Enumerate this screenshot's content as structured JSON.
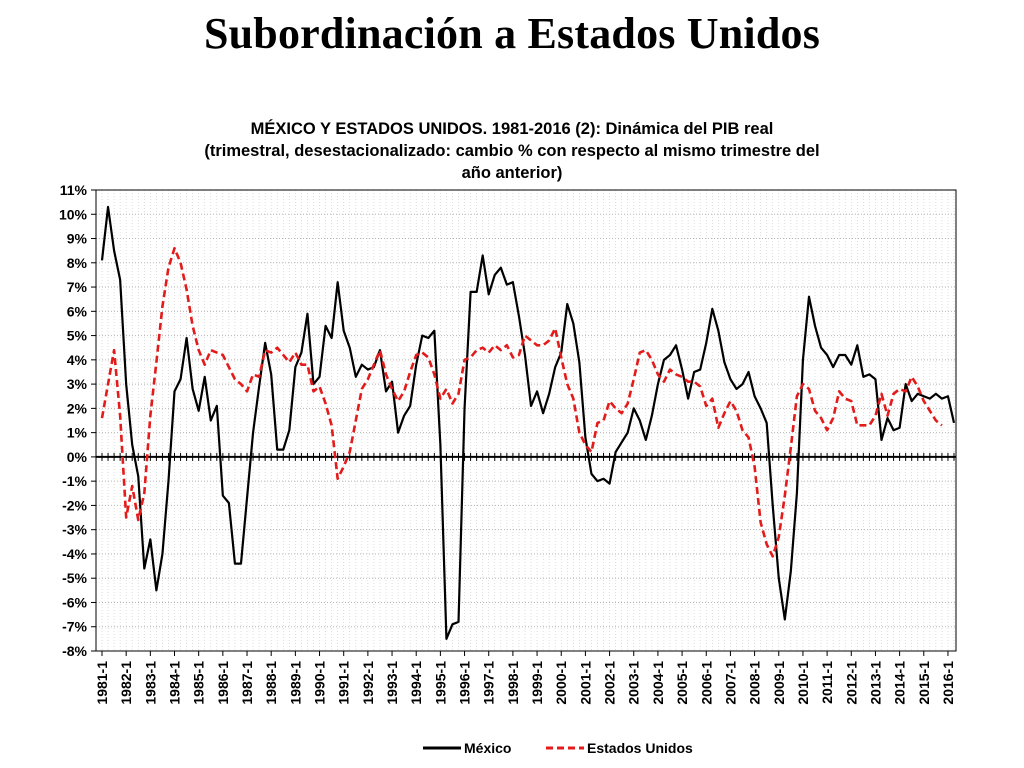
{
  "slide": {
    "title": "Subordinación a Estados Unidos"
  },
  "chart_data": {
    "type": "line",
    "title_lines": [
      "MÉXICO Y ESTADOS UNIDOS. 1981-2016 (2): Dinámica del PIB real",
      "(trimestral, desestacionalizado: cambio % con respecto al mismo trimestre del",
      "año anterior)"
    ],
    "ylim": [
      -8,
      11
    ],
    "y_ticks": [
      11,
      10,
      9,
      8,
      7,
      6,
      5,
      4,
      3,
      2,
      1,
      0,
      -1,
      -2,
      -3,
      -4,
      -5,
      -6,
      -7,
      -8
    ],
    "y_tick_suffix": "%",
    "x_tick_labels": [
      "1981-1",
      "1982-1",
      "1983-1",
      "1984-1",
      "1985-1",
      "1986-1",
      "1987-1",
      "1988-1",
      "1989-1",
      "1990-1",
      "1991-1",
      "1992-1",
      "1993-1",
      "1994-1",
      "1995-1",
      "1996-1",
      "1997-1",
      "1998-1",
      "1999-1",
      "2000-1",
      "2001-1",
      "2002-1",
      "2003-1",
      "2004-1",
      "2005-1",
      "2006-1",
      "2007-1",
      "2008-1",
      "2009-1",
      "2010-1",
      "2011-1",
      "2012-1",
      "2013-1",
      "2014-1",
      "2015-1",
      "2016-1"
    ],
    "quarters_per_year": 4,
    "grid": true,
    "legend_position": "bottom-center",
    "series": [
      {
        "name": "México",
        "color": "#000000",
        "dash": "solid",
        "values": [
          8.1,
          10.3,
          8.5,
          7.3,
          3.0,
          0.5,
          -0.8,
          -4.6,
          -3.4,
          -5.5,
          -4.0,
          -1.0,
          2.7,
          3.2,
          4.9,
          2.8,
          1.9,
          3.3,
          1.5,
          2.1,
          -1.6,
          -1.9,
          -4.4,
          -4.4,
          -1.7,
          1.0,
          2.9,
          4.7,
          3.4,
          0.3,
          0.3,
          1.1,
          3.7,
          4.3,
          5.9,
          3.0,
          3.3,
          5.4,
          4.9,
          7.2,
          5.2,
          4.5,
          3.3,
          3.8,
          3.6,
          3.7,
          4.4,
          2.7,
          3.1,
          1.0,
          1.7,
          2.1,
          3.8,
          5.0,
          4.9,
          5.2,
          0.5,
          -7.5,
          -6.9,
          -6.8,
          2.0,
          6.8,
          6.8,
          8.3,
          6.7,
          7.5,
          7.8,
          7.1,
          7.2,
          5.8,
          4.2,
          2.1,
          2.7,
          1.8,
          2.6,
          3.7,
          4.3,
          6.3,
          5.5,
          3.9,
          0.8,
          -0.7,
          -1.0,
          -0.9,
          -1.1,
          0.2,
          0.6,
          1.0,
          2.0,
          1.5,
          0.7,
          1.7,
          3.0,
          4.0,
          4.2,
          4.6,
          3.6,
          2.4,
          3.5,
          3.6,
          4.7,
          6.1,
          5.2,
          3.9,
          3.2,
          2.8,
          3.0,
          3.5,
          2.5,
          2.0,
          1.4,
          -2.0,
          -5.0,
          -6.7,
          -4.7,
          -1.5,
          4.0,
          6.6,
          5.4,
          4.5,
          4.2,
          3.7,
          4.2,
          4.2,
          3.8,
          4.6,
          3.3,
          3.4,
          3.2,
          0.7,
          1.6,
          1.1,
          1.2,
          3.0,
          2.3,
          2.6,
          2.5,
          2.4,
          2.6,
          2.4,
          2.5,
          1.4
        ]
      },
      {
        "name": "Estados Unidos",
        "color": "#e31b1b",
        "dash": "dashed",
        "values": [
          1.6,
          3.0,
          4.4,
          1.7,
          -2.5,
          -1.2,
          -2.6,
          -1.5,
          1.7,
          3.9,
          6.2,
          7.8,
          8.6,
          8.0,
          6.9,
          5.4,
          4.4,
          3.8,
          4.4,
          4.3,
          4.2,
          3.7,
          3.2,
          3.0,
          2.7,
          3.4,
          3.3,
          4.4,
          4.3,
          4.5,
          4.2,
          3.9,
          4.3,
          3.8,
          3.8,
          2.7,
          2.9,
          2.2,
          1.3,
          -0.9,
          -0.4,
          0.2,
          1.5,
          2.8,
          3.2,
          3.8,
          4.4,
          3.4,
          2.8,
          2.3,
          2.7,
          3.5,
          4.2,
          4.3,
          4.1,
          3.4,
          2.4,
          2.8,
          2.2,
          2.6,
          4.0,
          4.1,
          4.4,
          4.5,
          4.3,
          4.6,
          4.4,
          4.6,
          4.1,
          4.2,
          5.0,
          4.8,
          4.6,
          4.6,
          4.8,
          5.3,
          4.1,
          3.0,
          2.4,
          1.0,
          0.5,
          0.2,
          1.4,
          1.5,
          2.3,
          2.0,
          1.8,
          2.2,
          3.2,
          4.3,
          4.4,
          4.0,
          3.4,
          3.1,
          3.6,
          3.4,
          3.3,
          3.1,
          3.1,
          2.9,
          2.1,
          2.4,
          1.2,
          1.8,
          2.3,
          1.9,
          1.1,
          0.8,
          -0.4,
          -2.7,
          -3.6,
          -4.1,
          -3.3,
          -1.6,
          0.4,
          2.5,
          3.0,
          2.8,
          1.9,
          1.6,
          1.1,
          1.6,
          2.7,
          2.4,
          2.3,
          1.3,
          1.3,
          1.3,
          1.7,
          2.6,
          1.7,
          2.6,
          2.8,
          2.7,
          3.3,
          2.9,
          2.3,
          1.9,
          1.5,
          1.3
        ]
      }
    ]
  }
}
